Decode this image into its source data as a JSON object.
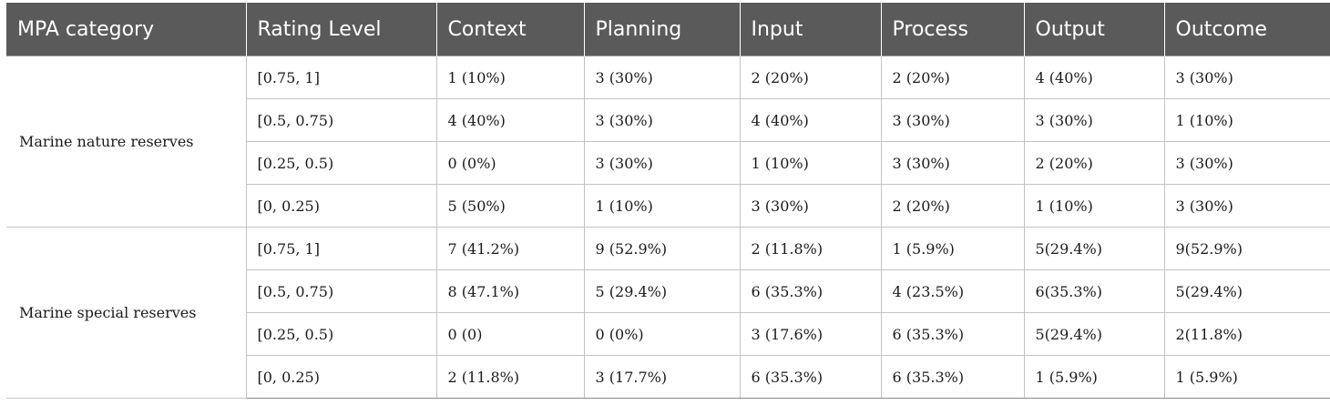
{
  "table": {
    "headers": [
      "MPA category",
      "Rating Level",
      "Context",
      "Planning",
      "Input",
      "Process",
      "Output",
      "Outcome"
    ],
    "groups": [
      {
        "category": "Marine nature reserves",
        "rows": [
          [
            "[0.75, 1]",
            "1 (10%)",
            "3 (30%)",
            "2 (20%)",
            "2 (20%)",
            "4 (40%)",
            "3 (30%)"
          ],
          [
            "[0.5, 0.75)",
            "4 (40%)",
            "3 (30%)",
            "4 (40%)",
            "3 (30%)",
            "3 (30%)",
            "1 (10%)"
          ],
          [
            "[0.25, 0.5)",
            "0 (0%)",
            "3 (30%)",
            "1 (10%)",
            "3 (30%)",
            "2 (20%)",
            "3 (30%)"
          ],
          [
            "[0, 0.25)",
            "5 (50%)",
            "1 (10%)",
            "3 (30%)",
            "2 (20%)",
            "1 (10%)",
            "3 (30%)"
          ]
        ]
      },
      {
        "category": "Marine special reserves",
        "rows": [
          [
            "[0.75, 1]",
            "7 (41.2%)",
            "9 (52.9%)",
            "2 (11.8%)",
            "1 (5.9%)",
            "5(29.4%)",
            "9(52.9%)"
          ],
          [
            "[0.5, 0.75)",
            "8 (47.1%)",
            "5 (29.4%)",
            "6 (35.3%)",
            "4 (23.5%)",
            "6(35.3%)",
            "5(29.4%)"
          ],
          [
            "[0.25, 0.5)",
            "0 (0)",
            "0 (0%)",
            "3 (17.6%)",
            "6 (35.3%)",
            "5(29.4%)",
            "2(11.8%)"
          ],
          [
            "[0, 0.25)",
            "2 (11.8%)",
            "3 (17.7%)",
            "6 (35.3%)",
            "6 (35.3%)",
            "1 (5.9%)",
            "1 (5.9%)"
          ]
        ]
      }
    ]
  }
}
